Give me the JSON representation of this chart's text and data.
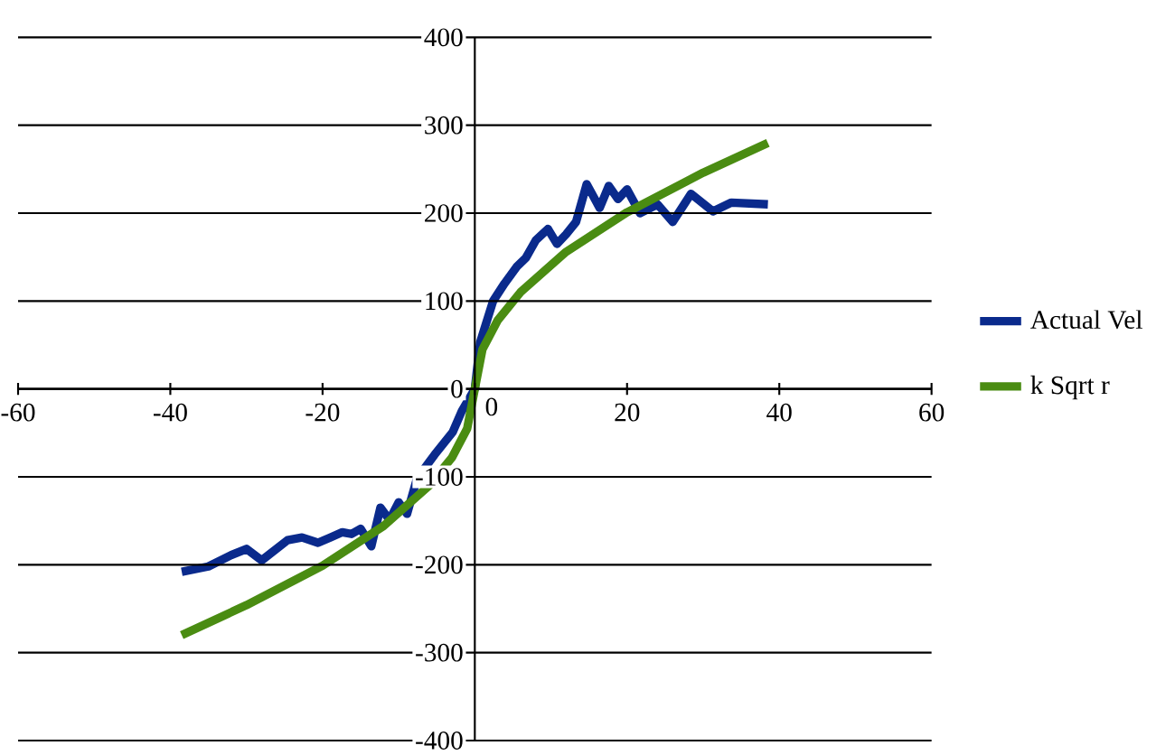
{
  "chart_data": {
    "type": "line",
    "xlim": [
      -60,
      60
    ],
    "ylim": [
      -400,
      400
    ],
    "xticks": [
      -60,
      -40,
      -20,
      0,
      20,
      40,
      60
    ],
    "yticks": [
      -400,
      -300,
      -200,
      -100,
      0,
      100,
      200,
      300,
      400
    ],
    "grid": "y",
    "legend": "right",
    "marker": "none",
    "line_style": "solid",
    "series": [
      {
        "name": "Actual Vel",
        "color": "#0a2a8c",
        "x": [
          -38.5,
          -35,
          -32,
          -30,
          -28,
          -24.6,
          -22.7,
          -20.6,
          -19,
          -17.4,
          -16.2,
          -15,
          -13.6,
          -12.4,
          -11.2,
          -10,
          -8.9,
          -7.6,
          -5.3,
          -2.9,
          -1.7,
          0,
          0.7,
          2.4,
          3.9,
          5.5,
          6.7,
          8,
          9.6,
          10.8,
          12,
          13.3,
          14.7,
          16.4,
          17.6,
          18.8,
          20,
          21.7,
          24,
          26,
          28.4,
          31.3,
          33.7,
          38.5
        ],
        "values": [
          -208,
          -202,
          -189,
          -182,
          -195,
          -172,
          -169,
          -175,
          -169,
          -163,
          -165,
          -159,
          -179,
          -135,
          -149,
          -129,
          -142,
          -102,
          -75,
          -49,
          -25,
          0,
          53,
          100,
          120,
          139,
          149,
          169,
          182,
          165,
          176,
          190,
          233,
          206,
          231,
          216,
          227,
          200,
          210,
          190,
          222,
          202,
          212,
          210
        ]
      },
      {
        "name": "k Sqrt r",
        "color": "#4a8c12",
        "x": [
          -38.5,
          -30,
          -20,
          -12,
          -6,
          -3,
          -1,
          0,
          1,
          3,
          6,
          12,
          20,
          30,
          38.5
        ],
        "values": [
          -280,
          -246,
          -201,
          -156,
          -110,
          -78,
          -45,
          0,
          45,
          78,
          110,
          156,
          201,
          246,
          280
        ]
      }
    ]
  }
}
